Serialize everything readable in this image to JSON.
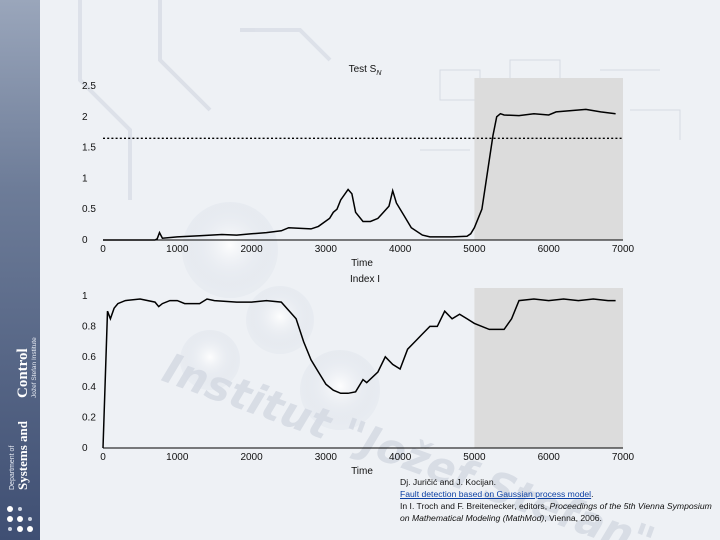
{
  "sidebar": {
    "department_line1": "Department of",
    "department_line2": "Systems and",
    "department_line3": "Control",
    "institute": "Jožef Stefan Institute"
  },
  "watermark": "Institut \"Jožef Stefan\"",
  "citation": {
    "authors": "Dj. Juričić and J. Kocijan.",
    "title": "Fault detection based on Gaussian process model",
    "pub_prefix": "In I. Troch and F. Breitenecker, editors, ",
    "proceedings": "Proceedings of the 5th Vienna Symposium on Mathematical Modeling (MathMod)",
    "pub_suffix": ", Vienna, 2006."
  },
  "colors": {
    "shade": "#dcdcdc",
    "line": "#000000",
    "threshold": "#000000"
  },
  "chart_data": [
    {
      "type": "line",
      "title": "Test S_N",
      "title_main": "Test S",
      "title_sub": "N",
      "xlabel": "Time",
      "ylabel": "",
      "xlim": [
        0,
        7000
      ],
      "ylim": [
        0,
        2.5
      ],
      "xticks": [
        0,
        1000,
        2000,
        3000,
        4000,
        5000,
        6000,
        7000
      ],
      "yticks": [
        0,
        0.5,
        1,
        1.5,
        2,
        2.5
      ],
      "ytick_labels": [
        "0",
        "0.5",
        "1",
        "1.5",
        "2",
        "2.5"
      ],
      "shaded_region": [
        5000,
        7000
      ],
      "threshold": 1.65,
      "x": [
        0,
        700,
        730,
        760,
        800,
        1000,
        1300,
        1600,
        1800,
        2000,
        2200,
        2400,
        2500,
        2800,
        2900,
        3050,
        3100,
        3150,
        3200,
        3300,
        3350,
        3400,
        3500,
        3600,
        3700,
        3850,
        3900,
        3950,
        4050,
        4150,
        4300,
        4400,
        4500,
        4700,
        4900,
        4950,
        5000,
        5100,
        5150,
        5200,
        5250,
        5300,
        5350,
        5400,
        5600,
        5800,
        6000,
        6100,
        6300,
        6500,
        6700,
        6900
      ],
      "y": [
        0,
        0,
        0.02,
        0.12,
        0.03,
        0.05,
        0.07,
        0.09,
        0.08,
        0.1,
        0.12,
        0.15,
        0.2,
        0.18,
        0.22,
        0.35,
        0.45,
        0.5,
        0.65,
        0.82,
        0.75,
        0.45,
        0.3,
        0.3,
        0.35,
        0.55,
        0.8,
        0.6,
        0.4,
        0.2,
        0.08,
        0.05,
        0.05,
        0.05,
        0.06,
        0.1,
        0.2,
        0.5,
        0.9,
        1.3,
        1.7,
        2.0,
        2.05,
        2.03,
        2.02,
        2.05,
        2.03,
        2.08,
        2.1,
        2.12,
        2.08,
        2.05
      ]
    },
    {
      "type": "line",
      "title": "Index I",
      "xlabel": "Time",
      "ylabel": "",
      "xlim": [
        0,
        7000
      ],
      "ylim": [
        0,
        1
      ],
      "xticks": [
        0,
        1000,
        2000,
        3000,
        4000,
        5000,
        6000,
        7000
      ],
      "yticks": [
        0,
        0.2,
        0.4,
        0.6,
        0.8,
        1
      ],
      "ytick_labels": [
        "0",
        "0.2",
        "0.4",
        "0.6",
        "0.8",
        "1"
      ],
      "shaded_region": [
        5000,
        7000
      ],
      "x": [
        0,
        60,
        100,
        150,
        200,
        300,
        500,
        700,
        750,
        800,
        900,
        1000,
        1100,
        1300,
        1400,
        1500,
        1800,
        2000,
        2200,
        2400,
        2600,
        2700,
        2800,
        2900,
        3000,
        3100,
        3200,
        3300,
        3400,
        3500,
        3550,
        3700,
        3800,
        3900,
        4000,
        4100,
        4200,
        4300,
        4400,
        4500,
        4600,
        4700,
        4800,
        4900,
        5000,
        5200,
        5400,
        5500,
        5600,
        5800,
        6000,
        6200,
        6400,
        6600,
        6800,
        6900
      ],
      "y": [
        0,
        0.9,
        0.85,
        0.92,
        0.95,
        0.97,
        0.98,
        0.96,
        0.93,
        0.95,
        0.97,
        0.97,
        0.95,
        0.95,
        0.98,
        0.97,
        0.96,
        0.96,
        0.97,
        0.96,
        0.85,
        0.7,
        0.58,
        0.5,
        0.42,
        0.38,
        0.36,
        0.36,
        0.37,
        0.45,
        0.43,
        0.5,
        0.6,
        0.55,
        0.52,
        0.65,
        0.7,
        0.75,
        0.8,
        0.8,
        0.9,
        0.85,
        0.88,
        0.85,
        0.82,
        0.78,
        0.78,
        0.85,
        0.97,
        0.98,
        0.97,
        0.98,
        0.97,
        0.98,
        0.97,
        0.97
      ]
    }
  ]
}
